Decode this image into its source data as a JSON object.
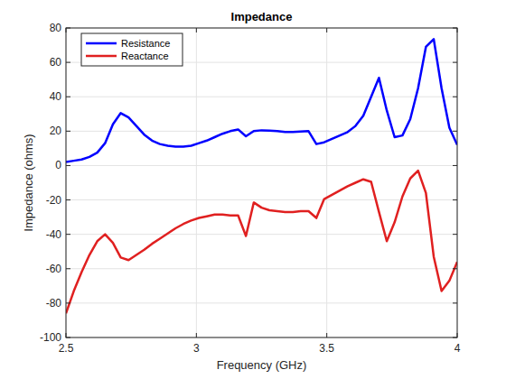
{
  "chart_data": {
    "type": "line",
    "title": "Impedance",
    "x_label": "Frequency (GHz)",
    "y_label": "Impedance (ohms)",
    "x": [
      2.5,
      2.53,
      2.56,
      2.59,
      2.62,
      2.65,
      2.68,
      2.71,
      2.74,
      2.77,
      2.8,
      2.83,
      2.86,
      2.89,
      2.92,
      2.95,
      2.98,
      3.01,
      3.04,
      3.07,
      3.1,
      3.13,
      3.16,
      3.19,
      3.22,
      3.25,
      3.28,
      3.31,
      3.34,
      3.37,
      3.4,
      3.43,
      3.46,
      3.49,
      3.52,
      3.55,
      3.58,
      3.61,
      3.64,
      3.67,
      3.7,
      3.73,
      3.76,
      3.79,
      3.82,
      3.85,
      3.88,
      3.91,
      3.94,
      3.97,
      4.0
    ],
    "series": [
      {
        "name": "Resistance",
        "color": "#0000ff",
        "values": [
          2,
          2.8,
          3.5,
          5,
          7.5,
          13,
          24,
          30.5,
          28,
          23,
          18,
          14.5,
          12.5,
          11.5,
          11,
          11,
          11.5,
          13,
          14.5,
          16.5,
          18.5,
          20,
          21,
          17,
          20,
          20.5,
          20.3,
          20,
          19.5,
          19.5,
          19.8,
          20,
          12.5,
          13.5,
          15.5,
          17.5,
          19.5,
          23,
          29,
          40,
          51,
          32,
          16.5,
          17.5,
          27,
          45,
          69,
          73.5,
          45,
          22,
          12
        ]
      },
      {
        "name": "Reactance",
        "color": "#e02020",
        "values": [
          -86,
          -73,
          -62,
          -52,
          -44,
          -40,
          -45,
          -53.5,
          -55,
          -52,
          -49,
          -45.5,
          -42.5,
          -39.5,
          -36.5,
          -34,
          -32,
          -30.5,
          -29.5,
          -28.5,
          -28.5,
          -29,
          -29,
          -41,
          -21.5,
          -24.5,
          -26,
          -26.5,
          -27,
          -27,
          -26.5,
          -26.5,
          -30.5,
          -19.5,
          -17,
          -14.5,
          -12,
          -10,
          -8,
          -9.5,
          -27,
          -44,
          -33,
          -18,
          -7.5,
          -3,
          -16,
          -53,
          -73,
          -67,
          -56
        ]
      }
    ],
    "xlim": [
      2.5,
      4
    ],
    "xticks": [
      2.5,
      3,
      3.5,
      4
    ],
    "ylim": [
      -100,
      80
    ],
    "yticks": [
      -100,
      -80,
      -60,
      -40,
      -20,
      0,
      20,
      40,
      60,
      80
    ],
    "grid": true,
    "legend": "northwest"
  }
}
